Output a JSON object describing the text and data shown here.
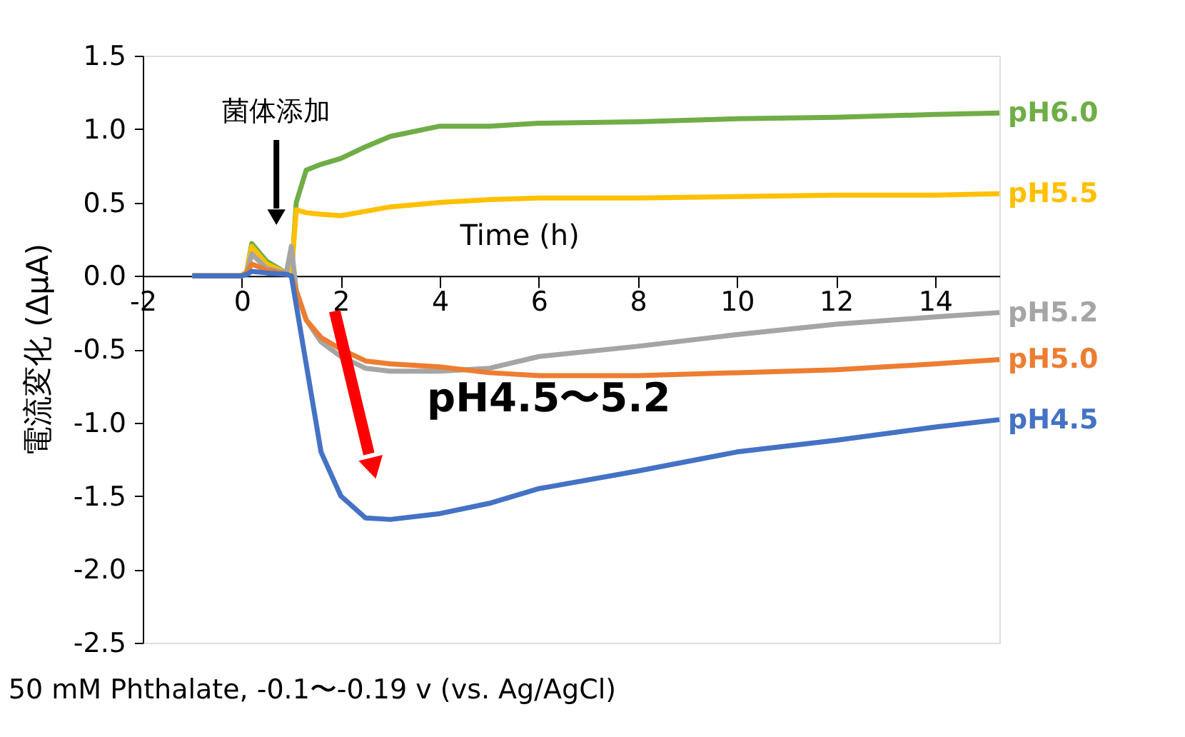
{
  "chart_data": {
    "type": "line",
    "xlabel": "Time (h)",
    "ylabel": "電流変化 (ΔμA)",
    "xlim": [
      -2,
      15.3
    ],
    "xticks": [
      -2,
      0,
      2,
      4,
      6,
      8,
      10,
      12,
      14
    ],
    "ylim": [
      -2.5,
      1.5
    ],
    "yticks": [
      {
        "value": -2.5,
        "label": "-2.5"
      },
      {
        "value": -2,
        "label": "-2.0"
      },
      {
        "value": -1.5,
        "label": "-1.5"
      },
      {
        "value": -1,
        "label": "-1.0"
      },
      {
        "value": -0.5,
        "label": "-0.5"
      },
      {
        "value": 0,
        "label": "0.0"
      },
      {
        "value": 0.5,
        "label": "0.5"
      },
      {
        "value": 1,
        "label": "1.0"
      },
      {
        "value": 1.5,
        "label": "1.5"
      }
    ],
    "grid": false,
    "legend": false,
    "marker": "none",
    "line_style": "solid",
    "x": [
      -1,
      0,
      0.1,
      0.2,
      0.5,
      0.9,
      1.0,
      1.1,
      1.3,
      1.6,
      2,
      2.5,
      3,
      4,
      5,
      6,
      8,
      10,
      12,
      14,
      15.3
    ],
    "series": [
      {
        "name": "pH6.0",
        "color": "#70ad47",
        "values": [
          0,
          0,
          0.03,
          0.22,
          0.1,
          0.02,
          0,
          0.5,
          0.72,
          0.76,
          0.8,
          0.88,
          0.95,
          1.02,
          1.02,
          1.04,
          1.05,
          1.07,
          1.08,
          1.1,
          1.11
        ]
      },
      {
        "name": "pH5.5",
        "color": "#ffc000",
        "values": [
          0,
          0,
          0.03,
          0.2,
          0.08,
          0.02,
          0,
          0.45,
          0.43,
          0.42,
          0.41,
          0.44,
          0.47,
          0.5,
          0.52,
          0.53,
          0.53,
          0.54,
          0.55,
          0.55,
          0.56
        ]
      },
      {
        "name": "pH5.2",
        "color": "#a5a5a5",
        "values": [
          0,
          0,
          0.02,
          0.15,
          0.05,
          0.02,
          0.2,
          -0.1,
          -0.3,
          -0.45,
          -0.55,
          -0.63,
          -0.65,
          -0.65,
          -0.63,
          -0.55,
          -0.48,
          -0.4,
          -0.33,
          -0.28,
          -0.25
        ]
      },
      {
        "name": "pH5.0",
        "color": "#ed7d31",
        "values": [
          0,
          0,
          0.02,
          0.08,
          0.04,
          0.01,
          0,
          -0.1,
          -0.3,
          -0.42,
          -0.5,
          -0.58,
          -0.6,
          -0.62,
          -0.66,
          -0.68,
          -0.68,
          -0.66,
          -0.64,
          -0.6,
          -0.57
        ]
      },
      {
        "name": "pH4.5",
        "color": "#4472c4",
        "values": [
          0,
          0,
          0.01,
          0.03,
          0.02,
          0.01,
          0,
          -0.2,
          -0.6,
          -1.2,
          -1.5,
          -1.65,
          -1.66,
          -1.62,
          -1.55,
          -1.45,
          -1.33,
          -1.2,
          -1.12,
          -1.03,
          -0.98
        ]
      }
    ],
    "annotations": [
      "菌体添加",
      "pH4.5〜5.2",
      "50 mM Phthalate, -0.1〜-0.19 v (vs. Ag/AgCl)"
    ]
  }
}
